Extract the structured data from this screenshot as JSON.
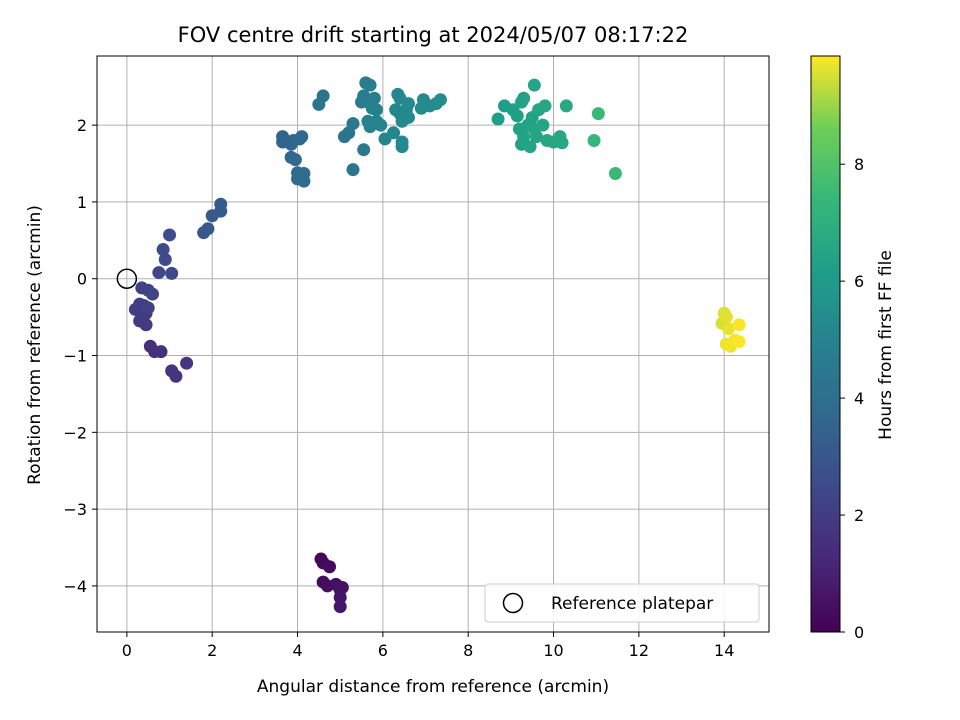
{
  "chart_data": {
    "type": "scatter",
    "title": "FOV centre drift starting at 2024/05/07 08:17:22",
    "xlabel": "Angular distance from reference (arcmin)",
    "ylabel": "Rotation from reference (arcmin)",
    "xlim": [
      -0.7,
      15.05
    ],
    "ylim": [
      -4.6,
      2.9
    ],
    "xticks": [
      0,
      2,
      4,
      6,
      8,
      10,
      12,
      14
    ],
    "yticks": [
      -4,
      -3,
      -2,
      -1,
      0,
      1,
      2
    ],
    "grid": true,
    "legend": {
      "location": "lower-right",
      "entries": [
        "Reference platepar"
      ]
    },
    "reference_point": {
      "x": 0,
      "y": 0
    },
    "colorbar": {
      "label": "Hours from first FF file",
      "colormap": "viridis",
      "range": [
        0,
        9.85
      ],
      "ticks": [
        0,
        2,
        4,
        6,
        8
      ]
    },
    "series": [
      {
        "points": [
          {
            "x": 4.55,
            "y": -3.65,
            "c": 0.2
          },
          {
            "x": 4.6,
            "y": -3.7,
            "c": 0.25
          },
          {
            "x": 4.75,
            "y": -3.75,
            "c": 0.3
          },
          {
            "x": 4.6,
            "y": -3.95,
            "c": 0.35
          },
          {
            "x": 4.7,
            "y": -4.0,
            "c": 0.4
          },
          {
            "x": 4.9,
            "y": -3.98,
            "c": 0.45
          },
          {
            "x": 5.0,
            "y": -4.05,
            "c": 0.5
          },
          {
            "x": 5.05,
            "y": -4.02,
            "c": 0.55
          },
          {
            "x": 5.0,
            "y": -4.15,
            "c": 0.6
          },
          {
            "x": 5.0,
            "y": -4.27,
            "c": 0.65
          },
          {
            "x": 0.55,
            "y": -0.88,
            "c": 1.5
          },
          {
            "x": 0.65,
            "y": -0.95,
            "c": 1.55
          },
          {
            "x": 0.8,
            "y": -0.95,
            "c": 1.6
          },
          {
            "x": 1.05,
            "y": -1.2,
            "c": 1.65
          },
          {
            "x": 1.15,
            "y": -1.27,
            "c": 1.7
          },
          {
            "x": 1.4,
            "y": -1.1,
            "c": 1.75
          },
          {
            "x": 0.35,
            "y": -0.5,
            "c": 1.8
          },
          {
            "x": 0.45,
            "y": -0.45,
            "c": 1.85
          },
          {
            "x": 0.3,
            "y": -0.55,
            "c": 1.9
          },
          {
            "x": 0.45,
            "y": -0.6,
            "c": 1.95
          },
          {
            "x": 0.2,
            "y": -0.4,
            "c": 2.0
          },
          {
            "x": 0.3,
            "y": -0.33,
            "c": 2.05
          },
          {
            "x": 0.4,
            "y": -0.35,
            "c": 2.1
          },
          {
            "x": 0.5,
            "y": -0.38,
            "c": 2.15
          },
          {
            "x": 0.35,
            "y": -0.12,
            "c": 2.2
          },
          {
            "x": 0.5,
            "y": -0.15,
            "c": 2.25
          },
          {
            "x": 0.6,
            "y": -0.2,
            "c": 2.3
          },
          {
            "x": 0.75,
            "y": 0.08,
            "c": 2.4
          },
          {
            "x": 1.05,
            "y": 0.07,
            "c": 2.45
          },
          {
            "x": 0.9,
            "y": 0.25,
            "c": 2.5
          },
          {
            "x": 0.85,
            "y": 0.38,
            "c": 2.55
          },
          {
            "x": 1.0,
            "y": 0.57,
            "c": 2.6
          },
          {
            "x": 1.8,
            "y": 0.6,
            "c": 3.0
          },
          {
            "x": 1.9,
            "y": 0.65,
            "c": 3.05
          },
          {
            "x": 2.0,
            "y": 0.82,
            "c": 3.1
          },
          {
            "x": 2.2,
            "y": 0.88,
            "c": 3.15
          },
          {
            "x": 2.2,
            "y": 0.97,
            "c": 3.2
          },
          {
            "x": 3.65,
            "y": 1.85,
            "c": 3.5
          },
          {
            "x": 3.65,
            "y": 1.78,
            "c": 3.55
          },
          {
            "x": 3.85,
            "y": 1.75,
            "c": 3.6
          },
          {
            "x": 3.9,
            "y": 1.8,
            "c": 3.65
          },
          {
            "x": 4.05,
            "y": 1.82,
            "c": 3.7
          },
          {
            "x": 4.1,
            "y": 1.85,
            "c": 3.72
          },
          {
            "x": 3.85,
            "y": 1.58,
            "c": 3.75
          },
          {
            "x": 3.95,
            "y": 1.55,
            "c": 3.78
          },
          {
            "x": 4.0,
            "y": 1.38,
            "c": 3.8
          },
          {
            "x": 4.15,
            "y": 1.37,
            "c": 3.82
          },
          {
            "x": 4.0,
            "y": 1.3,
            "c": 3.85
          },
          {
            "x": 4.15,
            "y": 1.27,
            "c": 3.88
          },
          {
            "x": 4.5,
            "y": 2.27,
            "c": 4.2
          },
          {
            "x": 4.6,
            "y": 2.38,
            "c": 4.25
          },
          {
            "x": 5.1,
            "y": 1.85,
            "c": 4.3
          },
          {
            "x": 5.2,
            "y": 1.9,
            "c": 4.35
          },
          {
            "x": 5.3,
            "y": 2.02,
            "c": 4.4
          },
          {
            "x": 5.3,
            "y": 1.42,
            "c": 4.45
          },
          {
            "x": 5.55,
            "y": 1.68,
            "c": 4.5
          },
          {
            "x": 5.5,
            "y": 2.3,
            "c": 4.55
          },
          {
            "x": 5.55,
            "y": 2.38,
            "c": 4.6
          },
          {
            "x": 5.6,
            "y": 2.55,
            "c": 4.65
          },
          {
            "x": 5.7,
            "y": 2.52,
            "c": 4.7
          },
          {
            "x": 5.65,
            "y": 2.3,
            "c": 4.75
          },
          {
            "x": 5.8,
            "y": 2.35,
            "c": 4.8
          },
          {
            "x": 5.75,
            "y": 2.22,
            "c": 4.85
          },
          {
            "x": 5.85,
            "y": 2.2,
            "c": 4.9
          },
          {
            "x": 5.65,
            "y": 2.05,
            "c": 4.92
          },
          {
            "x": 5.7,
            "y": 1.98,
            "c": 4.95
          },
          {
            "x": 5.85,
            "y": 2.05,
            "c": 4.98
          },
          {
            "x": 5.95,
            "y": 2.0,
            "c": 5.0
          },
          {
            "x": 6.05,
            "y": 1.82,
            "c": 5.05
          },
          {
            "x": 6.25,
            "y": 1.9,
            "c": 5.08
          },
          {
            "x": 6.3,
            "y": 2.2,
            "c": 5.1
          },
          {
            "x": 6.35,
            "y": 2.4,
            "c": 5.12
          },
          {
            "x": 6.4,
            "y": 2.35,
            "c": 5.14
          },
          {
            "x": 6.4,
            "y": 2.15,
            "c": 5.16
          },
          {
            "x": 6.45,
            "y": 2.05,
            "c": 5.18
          },
          {
            "x": 6.45,
            "y": 1.78,
            "c": 5.2
          },
          {
            "x": 6.45,
            "y": 1.72,
            "c": 5.22
          },
          {
            "x": 6.55,
            "y": 2.2,
            "c": 5.24
          },
          {
            "x": 6.6,
            "y": 2.28,
            "c": 5.26
          },
          {
            "x": 6.6,
            "y": 2.1,
            "c": 5.28
          },
          {
            "x": 6.9,
            "y": 2.22,
            "c": 5.3
          },
          {
            "x": 6.95,
            "y": 2.33,
            "c": 5.32
          },
          {
            "x": 7.1,
            "y": 2.25,
            "c": 5.34
          },
          {
            "x": 7.25,
            "y": 2.28,
            "c": 5.36
          },
          {
            "x": 7.35,
            "y": 2.33,
            "c": 5.38
          },
          {
            "x": 8.7,
            "y": 2.08,
            "c": 6.2
          },
          {
            "x": 8.85,
            "y": 2.25,
            "c": 6.22
          },
          {
            "x": 9.05,
            "y": 2.2,
            "c": 6.24
          },
          {
            "x": 9.15,
            "y": 2.12,
            "c": 6.26
          },
          {
            "x": 9.25,
            "y": 2.3,
            "c": 6.28
          },
          {
            "x": 9.3,
            "y": 2.35,
            "c": 6.3
          },
          {
            "x": 9.2,
            "y": 1.95,
            "c": 6.32
          },
          {
            "x": 9.3,
            "y": 1.85,
            "c": 6.34
          },
          {
            "x": 9.25,
            "y": 1.75,
            "c": 6.36
          },
          {
            "x": 9.4,
            "y": 2.0,
            "c": 6.38
          },
          {
            "x": 9.5,
            "y": 2.1,
            "c": 6.4
          },
          {
            "x": 9.45,
            "y": 1.72,
            "c": 6.42
          },
          {
            "x": 9.55,
            "y": 1.95,
            "c": 6.44
          },
          {
            "x": 9.6,
            "y": 1.85,
            "c": 6.46
          },
          {
            "x": 9.55,
            "y": 2.52,
            "c": 6.48
          },
          {
            "x": 9.65,
            "y": 2.2,
            "c": 6.5
          },
          {
            "x": 9.75,
            "y": 2.0,
            "c": 6.52
          },
          {
            "x": 9.8,
            "y": 2.25,
            "c": 6.54
          },
          {
            "x": 9.85,
            "y": 1.8,
            "c": 6.56
          },
          {
            "x": 10.0,
            "y": 1.78,
            "c": 6.58
          },
          {
            "x": 10.15,
            "y": 1.85,
            "c": 6.6
          },
          {
            "x": 10.2,
            "y": 1.77,
            "c": 6.62
          },
          {
            "x": 10.3,
            "y": 2.25,
            "c": 6.64
          },
          {
            "x": 10.95,
            "y": 1.8,
            "c": 7.4
          },
          {
            "x": 11.05,
            "y": 2.15,
            "c": 7.45
          },
          {
            "x": 11.45,
            "y": 1.37,
            "c": 7.5
          },
          {
            "x": 13.95,
            "y": -0.58,
            "c": 9.5
          },
          {
            "x": 14.0,
            "y": -0.45,
            "c": 9.55
          },
          {
            "x": 14.05,
            "y": -0.5,
            "c": 9.6
          },
          {
            "x": 14.1,
            "y": -0.65,
            "c": 9.65
          },
          {
            "x": 14.05,
            "y": -0.85,
            "c": 9.7
          },
          {
            "x": 14.15,
            "y": -0.88,
            "c": 9.75
          },
          {
            "x": 14.25,
            "y": -0.8,
            "c": 9.8
          },
          {
            "x": 14.35,
            "y": -0.6,
            "c": 9.82
          },
          {
            "x": 14.35,
            "y": -0.82,
            "c": 9.85
          }
        ]
      }
    ]
  }
}
